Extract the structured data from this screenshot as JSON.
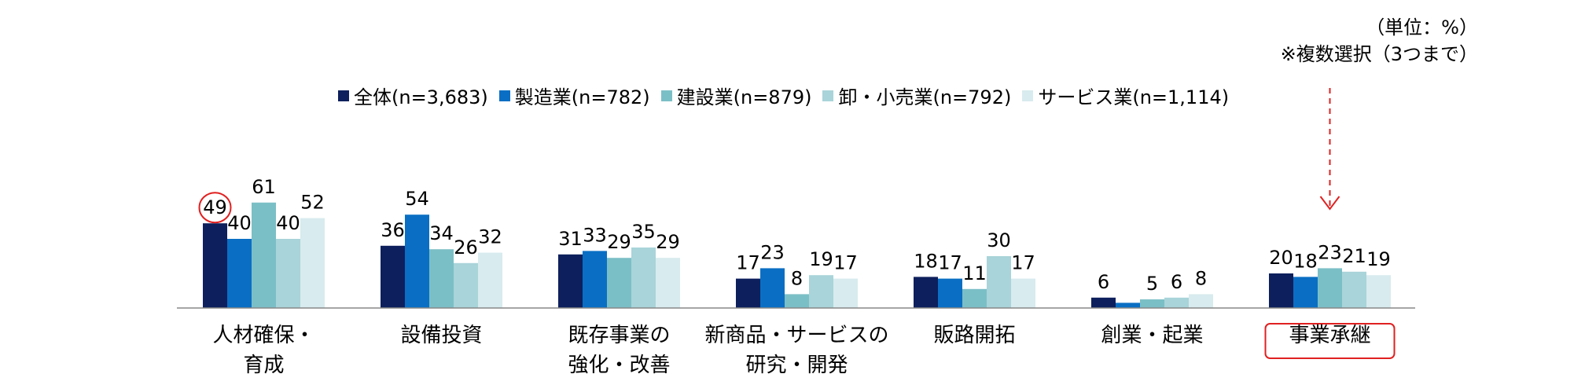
{
  "unit_note": "（単位：%）\n※複数選択（3つまで）",
  "colors": [
    "#0d1f5c",
    "#0a6fc4",
    "#7bbfc6",
    "#a9d4d9",
    "#d8ebee"
  ],
  "highlight_color": "#e02020",
  "chart_data": {
    "type": "bar",
    "categories": [
      "人材確保・\n育成",
      "設備投資",
      "既存事業の\n強化・改善",
      "新商品・サービスの\n研究・開発",
      "販路開拓",
      "創業・起業",
      "事業承継"
    ],
    "series": [
      {
        "name": "全体(n=3,683)",
        "values": [
          49,
          36,
          31,
          17,
          18,
          6,
          20
        ]
      },
      {
        "name": "製造業(n=782)",
        "values": [
          40,
          54,
          33,
          23,
          17,
          3,
          18
        ]
      },
      {
        "name": "建設業(n=879)",
        "values": [
          61,
          34,
          29,
          8,
          11,
          5,
          23
        ]
      },
      {
        "name": "卸・小売業(n=792)",
        "values": [
          40,
          26,
          35,
          19,
          30,
          6,
          21
        ]
      },
      {
        "name": "サービス業(n=1,114)",
        "values": [
          52,
          32,
          29,
          17,
          17,
          8,
          19
        ]
      }
    ],
    "data_labels": [
      [
        "49",
        "40",
        "61",
        "40",
        "52"
      ],
      [
        "36",
        "54",
        "34",
        "26",
        "32"
      ],
      [
        "31",
        "33",
        "29",
        "35",
        "29"
      ],
      [
        "17",
        "23",
        "8",
        "19",
        "17"
      ],
      [
        "18",
        "17",
        "11",
        "30",
        "17"
      ],
      [
        "6",
        "",
        "5",
        "6",
        "8"
      ],
      [
        "20",
        "18",
        "23",
        "21",
        "19"
      ]
    ],
    "ylim": [
      0,
      80
    ],
    "grid": false,
    "legend_position": "top",
    "highlight_category": "事業承継",
    "circled_value": "49"
  }
}
